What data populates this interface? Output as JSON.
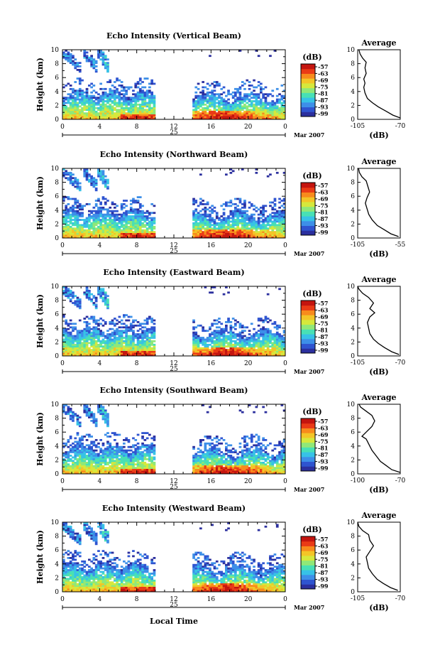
{
  "figure": {
    "xlabel": "Local Time",
    "date_label": "25",
    "month_label": "Mar 2007",
    "colorbar_unit": "(dB)",
    "profile_title": "Average",
    "profile_xlabel": "(dB)"
  },
  "colors": {
    "scale": [
      "#2b2f9e",
      "#2f54d0",
      "#3d8fe8",
      "#37c2e6",
      "#48e0b5",
      "#90e878",
      "#d6e83c",
      "#f3c527",
      "#f88b1c",
      "#ea3b16",
      "#c4150f"
    ]
  },
  "chart_data": [
    {
      "type": "heatmap",
      "title": "Echo Intensity (Vertical Beam)",
      "ylabel": "Height (km)",
      "x_ticks": [
        "0",
        "4",
        "8",
        "12",
        "16",
        "20",
        "0"
      ],
      "y_ticks": [
        "0",
        "2",
        "4",
        "6",
        "8",
        "10"
      ],
      "xlim": [
        0,
        24
      ],
      "ylim": [
        0,
        10
      ],
      "colorbar_ticks": [
        "-57",
        "-63",
        "-69",
        "-75",
        "-81",
        "-87",
        "-93",
        "-99"
      ],
      "data_gap": [
        9.8,
        14
      ],
      "profile": {
        "title": "Average",
        "x_ticks": [
          "-105",
          "-70"
        ],
        "xlim": [
          -105,
          -70
        ],
        "points": [
          [
            -70,
            0.2
          ],
          [
            -76,
            0.6
          ],
          [
            -82,
            1.2
          ],
          [
            -88,
            1.8
          ],
          [
            -93,
            2.4
          ],
          [
            -97,
            3.0
          ],
          [
            -99,
            3.8
          ],
          [
            -100,
            4.6
          ],
          [
            -99,
            5.2
          ],
          [
            -100,
            5.8
          ],
          [
            -98,
            6.6
          ],
          [
            -99,
            7.4
          ],
          [
            -98,
            8.2
          ],
          [
            -101,
            8.8
          ],
          [
            -103,
            9.4
          ],
          [
            -104,
            10
          ]
        ]
      }
    },
    {
      "type": "heatmap",
      "title": "Echo Intensity (Northward Beam)",
      "ylabel": "Height (km)",
      "x_ticks": [
        "0",
        "4",
        "8",
        "12",
        "16",
        "20",
        "0"
      ],
      "y_ticks": [
        "0",
        "2",
        "4",
        "6",
        "8",
        "10"
      ],
      "xlim": [
        0,
        24
      ],
      "ylim": [
        0,
        10
      ],
      "colorbar_ticks": [
        "-57",
        "-63",
        "-69",
        "-75",
        "-81",
        "-87",
        "-93",
        "-99"
      ],
      "data_gap": [
        9.8,
        14
      ],
      "profile": {
        "title": "Average",
        "x_ticks": [
          "-105",
          "-55"
        ],
        "xlim": [
          -105,
          -55
        ],
        "points": [
          [
            -57,
            0.2
          ],
          [
            -66,
            0.6
          ],
          [
            -74,
            1.2
          ],
          [
            -82,
            1.8
          ],
          [
            -88,
            2.6
          ],
          [
            -92,
            3.4
          ],
          [
            -94,
            4.2
          ],
          [
            -96,
            5.0
          ],
          [
            -94,
            5.8
          ],
          [
            -91,
            6.6
          ],
          [
            -93,
            7.4
          ],
          [
            -95,
            8.2
          ],
          [
            -100,
            8.8
          ],
          [
            -103,
            9.4
          ],
          [
            -104,
            10
          ]
        ]
      }
    },
    {
      "type": "heatmap",
      "title": "Echo Intensity (Eastward Beam)",
      "ylabel": "Height (km)",
      "x_ticks": [
        "0",
        "4",
        "8",
        "12",
        "16",
        "20",
        "0"
      ],
      "y_ticks": [
        "0",
        "2",
        "4",
        "6",
        "8",
        "10"
      ],
      "xlim": [
        0,
        24
      ],
      "ylim": [
        0,
        10
      ],
      "colorbar_ticks": [
        "-57",
        "-63",
        "-69",
        "-75",
        "-81",
        "-87",
        "-93",
        "-99"
      ],
      "data_gap": [
        9.8,
        14
      ],
      "profile": {
        "title": "Average",
        "x_ticks": [
          "-105",
          "-70"
        ],
        "xlim": [
          -105,
          -70
        ],
        "points": [
          [
            -71,
            0.2
          ],
          [
            -77,
            0.6
          ],
          [
            -83,
            1.2
          ],
          [
            -88,
            1.8
          ],
          [
            -92,
            2.4
          ],
          [
            -95,
            3.2
          ],
          [
            -96,
            4.0
          ],
          [
            -97,
            4.8
          ],
          [
            -95,
            5.6
          ],
          [
            -91,
            6.2
          ],
          [
            -95,
            6.8
          ],
          [
            -92,
            7.6
          ],
          [
            -96,
            8.4
          ],
          [
            -101,
            9.0
          ],
          [
            -104,
            9.6
          ],
          [
            -105,
            10
          ]
        ]
      }
    },
    {
      "type": "heatmap",
      "title": "Echo Intensity (Southward Beam)",
      "ylabel": "Height (km)",
      "x_ticks": [
        "0",
        "4",
        "8",
        "12",
        "16",
        "20",
        "0"
      ],
      "y_ticks": [
        "0",
        "2",
        "4",
        "6",
        "8",
        "10"
      ],
      "xlim": [
        0,
        24
      ],
      "ylim": [
        0,
        10
      ],
      "colorbar_ticks": [
        "-57",
        "-63",
        "-69",
        "-75",
        "-81",
        "-87",
        "-93",
        "-99"
      ],
      "data_gap": [
        9.8,
        14
      ],
      "profile": {
        "title": "Average",
        "x_ticks": [
          "-100",
          "-70"
        ],
        "xlim": [
          -100,
          -70
        ],
        "points": [
          [
            -70,
            0.2
          ],
          [
            -76,
            0.6
          ],
          [
            -80,
            1.2
          ],
          [
            -84,
            1.8
          ],
          [
            -87,
            2.6
          ],
          [
            -90,
            3.4
          ],
          [
            -92,
            4.2
          ],
          [
            -94,
            5.0
          ],
          [
            -97,
            5.4
          ],
          [
            -94,
            6.0
          ],
          [
            -90,
            6.8
          ],
          [
            -88,
            7.6
          ],
          [
            -90,
            8.4
          ],
          [
            -94,
            9.0
          ],
          [
            -98,
            9.6
          ],
          [
            -99,
            10
          ]
        ]
      }
    },
    {
      "type": "heatmap",
      "title": "Echo Intensity (Westward Beam)",
      "ylabel": "Height (km)",
      "x_ticks": [
        "0",
        "4",
        "8",
        "12",
        "16",
        "20",
        "0"
      ],
      "y_ticks": [
        "0",
        "2",
        "4",
        "6",
        "8",
        "10"
      ],
      "xlim": [
        0,
        24
      ],
      "ylim": [
        0,
        10
      ],
      "colorbar_ticks": [
        "-57",
        "-63",
        "-69",
        "-75",
        "-81",
        "-87",
        "-93",
        "-99"
      ],
      "data_gap": [
        9.8,
        14
      ],
      "profile": {
        "title": "Average",
        "x_ticks": [
          "-105",
          "-70"
        ],
        "xlim": [
          -105,
          -70
        ],
        "points": [
          [
            -72,
            0.2
          ],
          [
            -78,
            0.6
          ],
          [
            -84,
            1.2
          ],
          [
            -89,
            1.8
          ],
          [
            -93,
            2.6
          ],
          [
            -96,
            3.4
          ],
          [
            -97,
            4.2
          ],
          [
            -98,
            5.0
          ],
          [
            -95,
            5.8
          ],
          [
            -92,
            6.6
          ],
          [
            -95,
            7.4
          ],
          [
            -96,
            8.2
          ],
          [
            -101,
            8.8
          ],
          [
            -104,
            9.4
          ],
          [
            -105,
            10
          ]
        ]
      }
    }
  ]
}
